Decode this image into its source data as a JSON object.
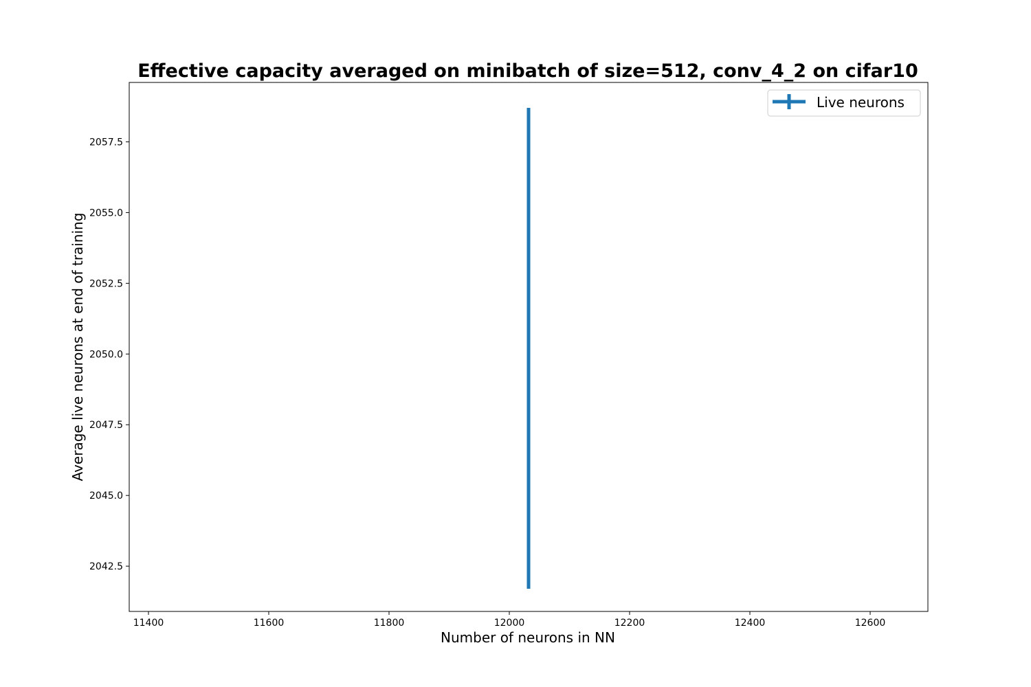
{
  "chart_data": {
    "type": "line",
    "title": "Effective capacity averaged on minibatch of size=512, conv_4_2 on cifar10",
    "xlabel": "Number of neurons in NN",
    "ylabel": "Average live neurons at end of training",
    "xlim": [
      11368,
      12696
    ],
    "ylim": [
      2040.9,
      2059.6
    ],
    "x_ticks": [
      11400,
      11600,
      11800,
      12000,
      12200,
      12400,
      12600
    ],
    "y_ticks": [
      2042.5,
      2045.0,
      2047.5,
      2050.0,
      2052.5,
      2055.0,
      2057.5
    ],
    "x_tick_labels": [
      "11400",
      "11600",
      "11800",
      "12000",
      "12200",
      "12400",
      "12600"
    ],
    "y_tick_labels": [
      "2042.5",
      "2045.0",
      "2047.5",
      "2050.0",
      "2052.5",
      "2055.0",
      "2057.5"
    ],
    "grid": false,
    "legend_placement": "top-right",
    "series": [
      {
        "name": "Live neurons",
        "color": "#1f77b4",
        "x": [
          12032
        ],
        "y": [
          2050.2
        ],
        "yerr": [
          8.5
        ]
      }
    ]
  }
}
